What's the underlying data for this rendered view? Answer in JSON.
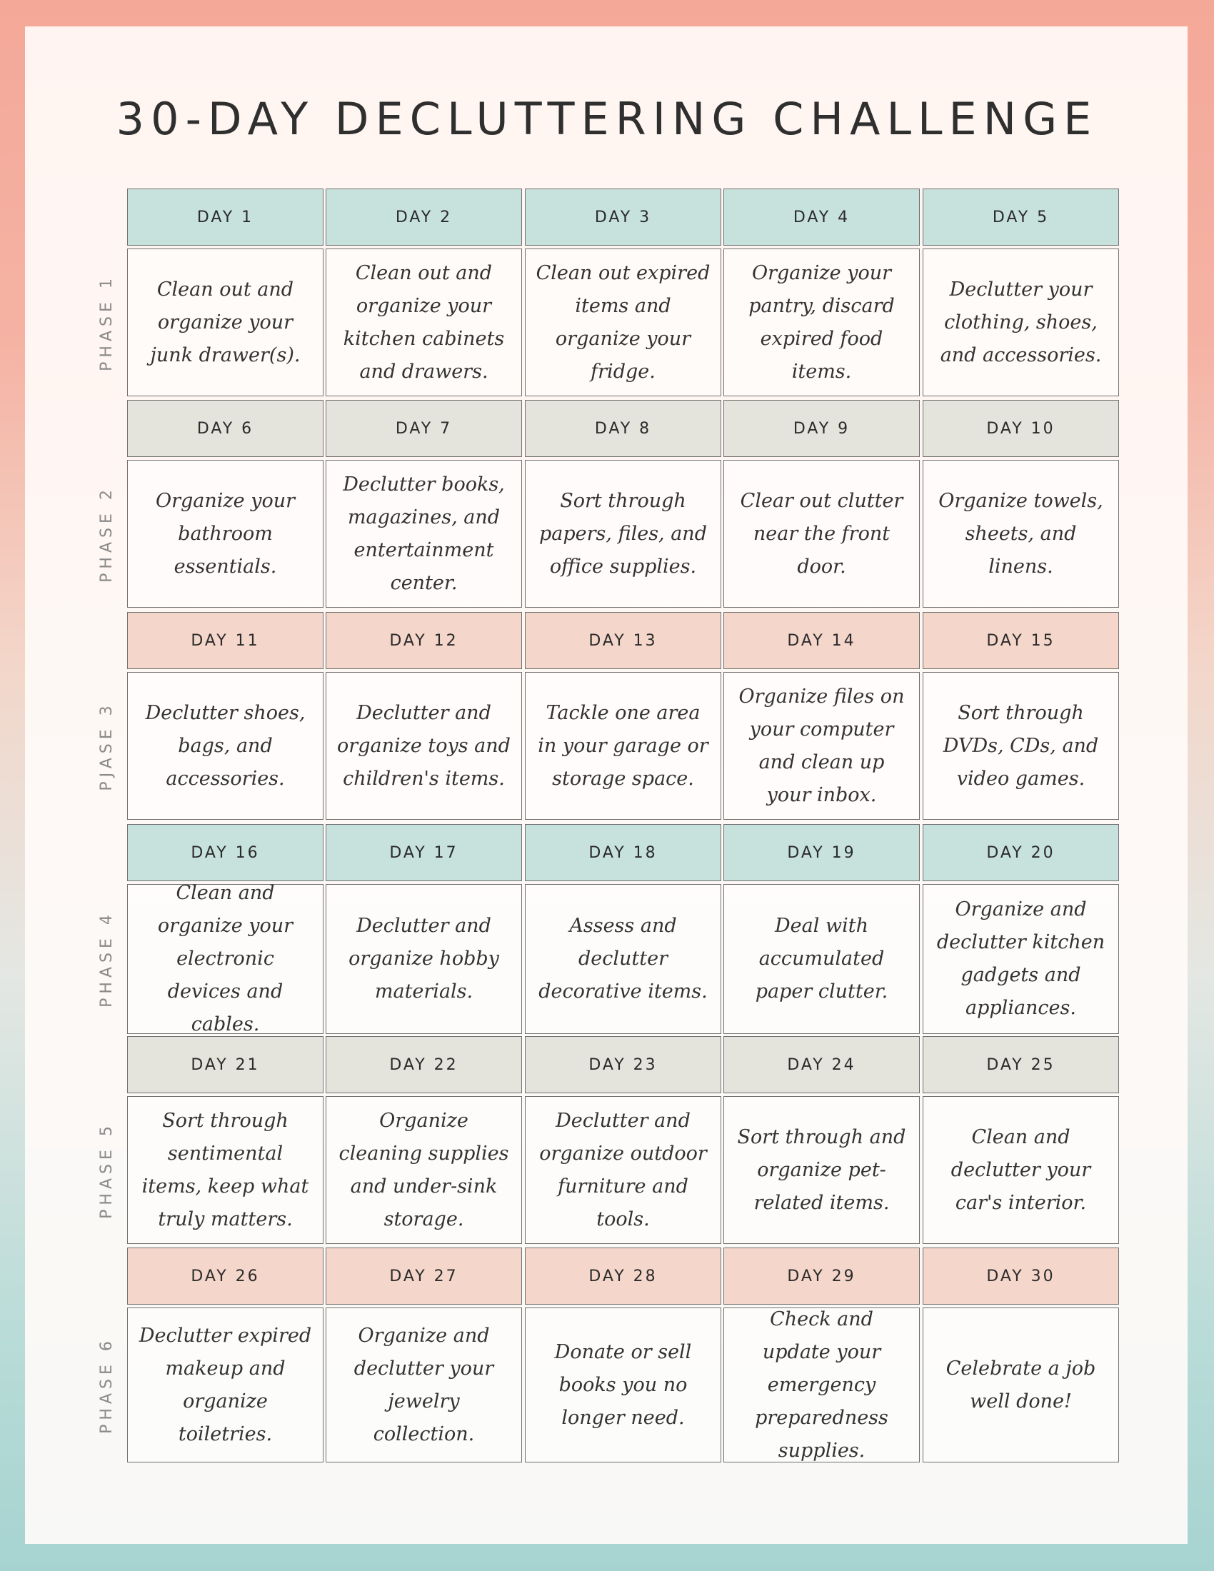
{
  "title": "30-DAY DECLUTTERING CHALLENGE",
  "colors": {
    "teal_header": "#c7e2dc",
    "gray_header": "#e5e4dc",
    "peach_header": "#f4d6ca"
  },
  "phases": [
    {
      "label": "PHASE 1",
      "header_color": "#c7e2dc",
      "days": [
        {
          "day": "DAY 1",
          "task": "Clean out and organize your junk drawer(s)."
        },
        {
          "day": "DAY 2",
          "task": "Clean out and organize your kitchen cabinets and drawers."
        },
        {
          "day": "DAY 3",
          "task": "Clean out expired items and organize your fridge."
        },
        {
          "day": "DAY 4",
          "task": "Organize your pantry, discard expired food items."
        },
        {
          "day": "DAY 5",
          "task": "Declutter your clothing, shoes, and accessories."
        }
      ]
    },
    {
      "label": "PHASE 2",
      "header_color": "#e5e4dc",
      "days": [
        {
          "day": "DAY 6",
          "task": "Organize your bathroom essentials."
        },
        {
          "day": "DAY 7",
          "task": "Declutter books, magazines, and entertainment center."
        },
        {
          "day": "DAY 8",
          "task": "Sort through papers, files, and office supplies."
        },
        {
          "day": "DAY 9",
          "task": "Clear out clutter near the front door."
        },
        {
          "day": "DAY 10",
          "task": "Organize towels, sheets, and linens."
        }
      ]
    },
    {
      "label": "PJASE 3",
      "header_color": "#f4d6ca",
      "days": [
        {
          "day": "DAY 11",
          "task": "Declutter shoes, bags, and accessories."
        },
        {
          "day": "DAY 12",
          "task": "Declutter and organize toys and children's items."
        },
        {
          "day": "DAY 13",
          "task": "Tackle one area in your garage or storage space."
        },
        {
          "day": "DAY 14",
          "task": "Organize files on your computer and clean up your inbox."
        },
        {
          "day": "DAY 15",
          "task": "Sort through DVDs, CDs, and video games."
        }
      ]
    },
    {
      "label": "PHASE 4",
      "header_color": "#c7e2dc",
      "days": [
        {
          "day": "DAY 16",
          "task": "Clean and organize your electronic devices and cables."
        },
        {
          "day": "DAY 17",
          "task": "Declutter and organize hobby materials."
        },
        {
          "day": "DAY 18",
          "task": "Assess and declutter decorative items."
        },
        {
          "day": "DAY 19",
          "task": "Deal with accumulated paper clutter."
        },
        {
          "day": "DAY 20",
          "task": "Organize and declutter kitchen gadgets and appliances."
        }
      ]
    },
    {
      "label": "PHASE 5",
      "header_color": "#e5e4dc",
      "days": [
        {
          "day": "DAY 21",
          "task": "Sort through sentimental items, keep what truly matters."
        },
        {
          "day": "DAY 22",
          "task": "Organize cleaning supplies and under-sink storage."
        },
        {
          "day": "DAY 23",
          "task": "Declutter and organize outdoor furniture and tools."
        },
        {
          "day": "DAY 24",
          "task": "Sort through and organize pet-related items."
        },
        {
          "day": "DAY 25",
          "task": "Clean and declutter your car's interior."
        }
      ]
    },
    {
      "label": "PHASE 6",
      "header_color": "#f4d6ca",
      "days": [
        {
          "day": "DAY 26",
          "task": "Declutter expired makeup and organize toiletries."
        },
        {
          "day": "DAY 27",
          "task": "Organize and declutter your jewelry collection."
        },
        {
          "day": "DAY 28",
          "task": "Donate or sell books you no longer need."
        },
        {
          "day": "DAY 29",
          "task": "Check and update your emergency preparedness supplies."
        },
        {
          "day": "DAY 30",
          "task": "Celebrate a job well done!"
        }
      ]
    }
  ]
}
